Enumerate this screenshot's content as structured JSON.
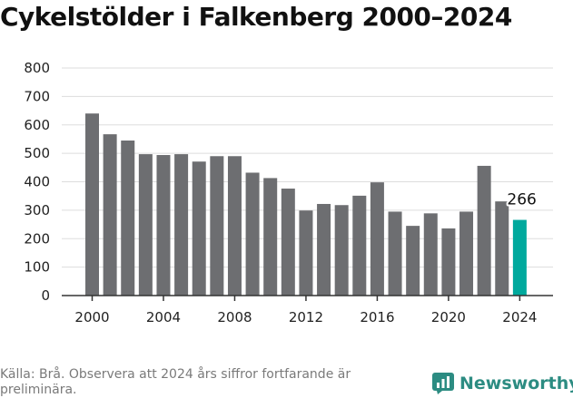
{
  "title": "Cykelstölder i Falkenberg 2000–2024",
  "source_note": "Källa: Brå. Observera att 2024 års siffror fortfarande är preliminära.",
  "brand": "Newsworthy",
  "colors": {
    "bar": "#6d6e71",
    "highlight": "#00a99d",
    "grid": "#dddddd",
    "axis": "#333333",
    "logo": "#2c8c82"
  },
  "chart_data": {
    "type": "bar",
    "title": "Cykelstölder i Falkenberg 2000–2024",
    "xlabel": "",
    "ylabel": "",
    "ylim": [
      0,
      800
    ],
    "yticks": [
      0,
      100,
      200,
      300,
      400,
      500,
      600,
      700,
      800
    ],
    "xticks": [
      2000,
      2004,
      2008,
      2012,
      2016,
      2020,
      2024
    ],
    "categories": [
      2000,
      2001,
      2002,
      2003,
      2004,
      2005,
      2006,
      2007,
      2008,
      2009,
      2010,
      2011,
      2012,
      2013,
      2014,
      2015,
      2016,
      2017,
      2018,
      2019,
      2020,
      2021,
      2022,
      2023,
      2024
    ],
    "values": [
      640,
      567,
      545,
      497,
      494,
      497,
      471,
      490,
      490,
      432,
      413,
      376,
      299,
      322,
      318,
      351,
      398,
      295,
      245,
      289,
      236,
      295,
      456,
      331,
      266
    ],
    "highlight_index": 24,
    "annotation": {
      "label": "266",
      "category": 2024
    },
    "grid": true
  }
}
